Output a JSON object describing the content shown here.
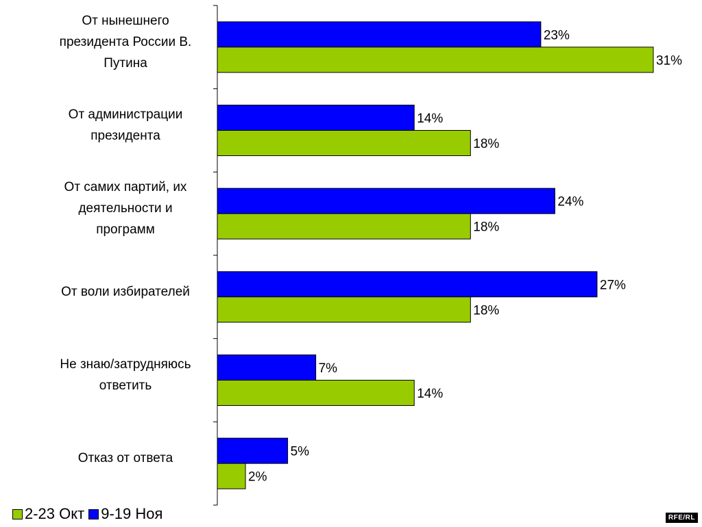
{
  "chart_data": {
    "type": "bar",
    "orientation": "horizontal",
    "categories": [
      [
        "От нынешнего",
        "президента России В.",
        "Путина"
      ],
      [
        "От администрации",
        "президента"
      ],
      [
        "От самих партий, их",
        "деятельности и",
        "программ"
      ],
      [
        "От воли избирателей"
      ],
      [
        "Не знаю/затрудняюсь",
        "ответить"
      ],
      [
        "Отказ от ответа"
      ]
    ],
    "series": [
      {
        "name": "9-19 Ноя",
        "color": "#0000ff",
        "values": [
          23,
          14,
          24,
          27,
          7,
          5
        ]
      },
      {
        "name": "2-23 Окт",
        "color": "#99cc00",
        "values": [
          31,
          18,
          18,
          18,
          14,
          2
        ]
      }
    ],
    "value_suffix": "%",
    "xlim": [
      0,
      31
    ],
    "grid": false,
    "legend_position": "bottom-left",
    "legend": [
      {
        "label": "2-23 Окт",
        "color": "#99cc00"
      },
      {
        "label": "9-19 Ноя",
        "color": "#0000ff"
      }
    ]
  },
  "watermark": "RFE/RL"
}
